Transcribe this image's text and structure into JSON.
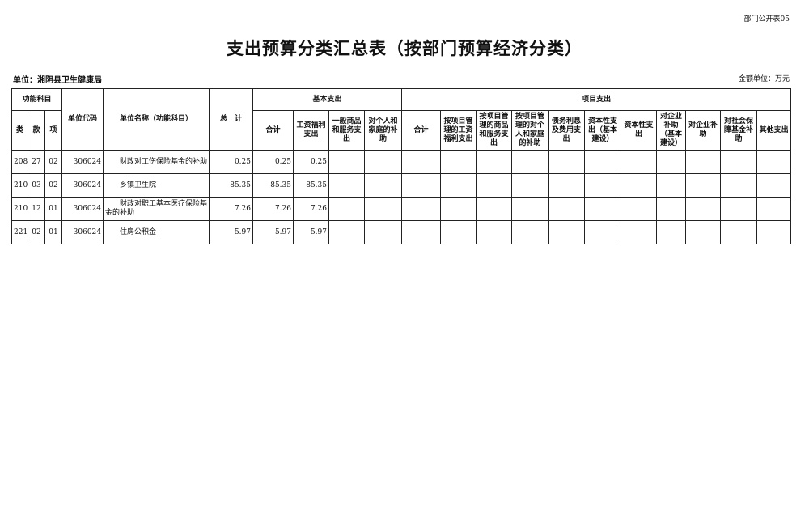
{
  "form_code": "部门公开表05",
  "title": "支出预算分类汇总表（按部门预算经济分类）",
  "unit_label": "单位：湘阴县卫生健康局",
  "money_unit": "金额单位：万元",
  "headers": {
    "func": "功能科目",
    "lei": "类",
    "kuan": "款",
    "xiang": "项",
    "unit_code": "单位代码",
    "unit_name": "单位名称（功能科目）",
    "total": "总　计",
    "basic": "基本支出",
    "project": "项目支出",
    "basic_cols": [
      "合计",
      "工资福利支出",
      "一般商品和服务支出",
      "对个人和家庭的补助"
    ],
    "project_cols": [
      "合计",
      "按项目管理的工资福利支出",
      "按项目管理的商品和服务支出",
      "按项目管理的对个人和家庭的补助",
      "债务利息及费用支出",
      "资本性支出（基本建设）",
      "资本性支出",
      "对企业补助（基本建设）",
      "对企业补助",
      "对社会保障基金补助",
      "其他支出"
    ]
  },
  "rows": [
    {
      "lei": "208",
      "kuan": "27",
      "xiang": "02",
      "code": "306024",
      "name": "财政对工伤保险基金的补助",
      "total": "0.25",
      "basic_total": "0.25",
      "salary": "0.25"
    },
    {
      "lei": "210",
      "kuan": "03",
      "xiang": "02",
      "code": "306024",
      "name": "乡镇卫生院",
      "total": "85.35",
      "basic_total": "85.35",
      "salary": "85.35"
    },
    {
      "lei": "210",
      "kuan": "12",
      "xiang": "01",
      "code": "306024",
      "name": "财政对职工基本医疗保险基金的补助",
      "total": "7.26",
      "basic_total": "7.26",
      "salary": "7.26"
    },
    {
      "lei": "221",
      "kuan": "02",
      "xiang": "01",
      "code": "306024",
      "name": "住房公积金",
      "total": "5.97",
      "basic_total": "5.97",
      "salary": "5.97"
    }
  ]
}
